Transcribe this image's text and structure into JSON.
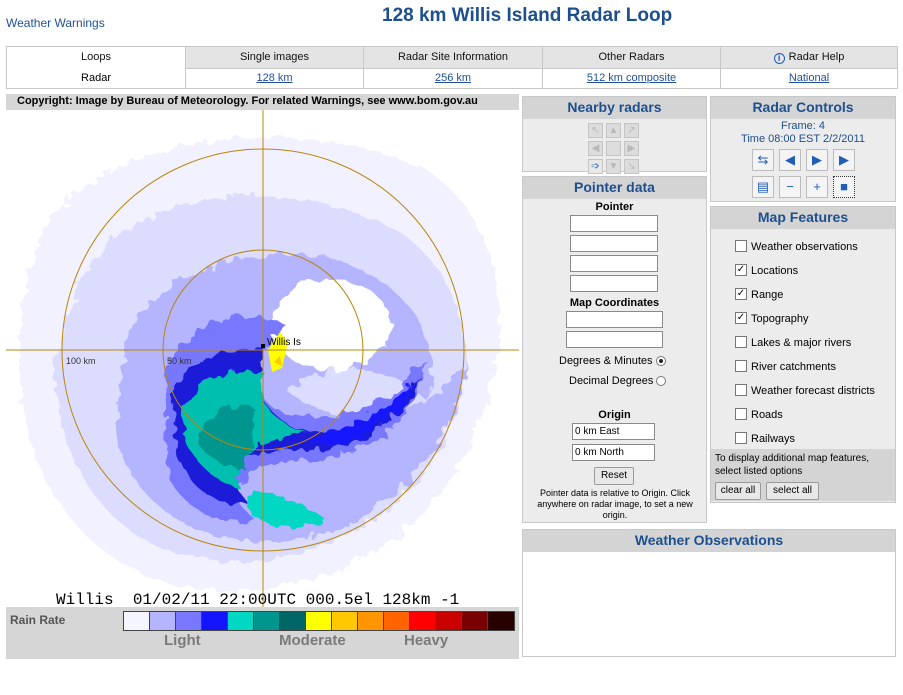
{
  "header": {
    "top_link": "Weather Warnings",
    "title": "128 km Willis Island Radar Loop"
  },
  "tabs": [
    {
      "label": "Loops",
      "active": true
    },
    {
      "label": "Single images",
      "active": false
    },
    {
      "label": "Radar Site Information",
      "active": false
    },
    {
      "label": "Other Radars",
      "active": false
    },
    {
      "label": "Radar Help",
      "active": false,
      "icon": "info-icon"
    }
  ],
  "subtabs": {
    "radar_label": "Radar",
    "links": [
      "128 km",
      "256 km",
      "512 km composite",
      "National"
    ]
  },
  "radar": {
    "copyright": "Copyright: Image by Bureau of Meteorology. For related Warnings, see www.bom.gov.au",
    "location_label": "Willis Is",
    "range_label_100": "100 km",
    "range_label_50": "50 km",
    "stamp": "Willis  01/02/11 22:00UTC 000.5el 128km -1"
  },
  "legend": {
    "title": "Rain Rate",
    "levels": [
      "Light",
      "Moderate",
      "Heavy"
    ],
    "colors": [
      "#f5f5ff",
      "#b4b4ff",
      "#7878ff",
      "#1414ff",
      "#00d8c3",
      "#009690",
      "#006666",
      "#ffff00",
      "#ffc800",
      "#ff9600",
      "#ff6400",
      "#ff0000",
      "#c80000",
      "#780000",
      "#280000"
    ]
  },
  "nearby": {
    "title": "Nearby radars"
  },
  "pointer": {
    "title": "Pointer data",
    "subtitle": "Pointer",
    "map_coords_label": "Map Coordinates",
    "degrees_minutes": "Degrees & Minutes",
    "decimal_degrees": "Decimal Degrees",
    "origin_label": "Origin",
    "east_value": "0 km East",
    "north_value": "0 km North",
    "reset_label": "Reset",
    "note": "Pointer data is relative to Origin. Click anywhere on radar image, to set a new origin."
  },
  "controls": {
    "title": "Radar Controls",
    "frame": "Frame: 4",
    "time": "Time 08:00 EST 2/2/2011"
  },
  "features": {
    "title": "Map Features",
    "items": [
      {
        "label": "Weather observations",
        "checked": false
      },
      {
        "label": "Locations",
        "checked": true
      },
      {
        "label": "Range",
        "checked": true
      },
      {
        "label": "Topography",
        "checked": true
      },
      {
        "label": "Lakes & major rivers",
        "checked": false
      },
      {
        "label": "River catchments",
        "checked": false
      },
      {
        "label": "Weather forecast districts",
        "checked": false
      },
      {
        "label": "Roads",
        "checked": false
      },
      {
        "label": "Railways",
        "checked": false
      }
    ],
    "hint": "To display additional map features, select listed options",
    "clear_label": "clear all",
    "select_label": "select all"
  },
  "observations": {
    "title": "Weather Observations"
  }
}
